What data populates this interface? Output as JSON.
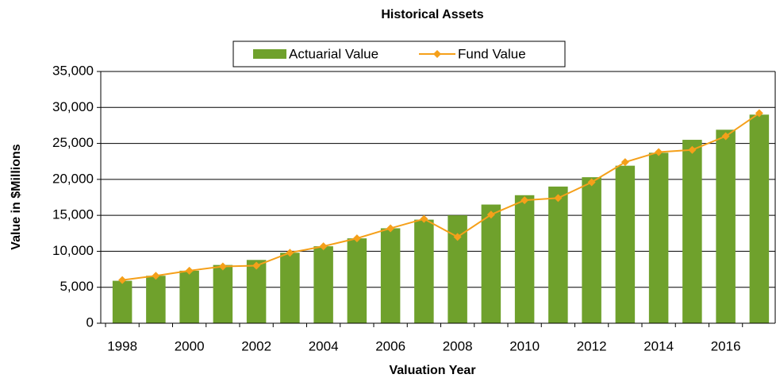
{
  "chart_data": {
    "type": "bar_line",
    "title": "Historical Assets",
    "x_label": "Valuation Year",
    "y_label": "Value in $Millions",
    "categories": [
      "1998",
      null,
      "2000",
      null,
      "2002",
      null,
      "2004",
      null,
      "2006",
      null,
      "2008",
      null,
      "2010",
      null,
      "2012",
      null,
      "2014",
      null,
      "2016",
      null
    ],
    "series": [
      {
        "name": "Actuarial Value",
        "kind": "bar",
        "color": "#6fa12c",
        "values": [
          5900,
          6600,
          7300,
          8100,
          8800,
          9800,
          10700,
          11800,
          13200,
          14400,
          15000,
          16500,
          17800,
          19000,
          20300,
          21900,
          23700,
          25500,
          26900,
          29000
        ]
      },
      {
        "name": "Fund Value",
        "kind": "line",
        "color": "#f5a01a",
        "values": [
          6000,
          6600,
          7300,
          7900,
          8000,
          9800,
          10700,
          11800,
          13200,
          14500,
          12000,
          15100,
          17100,
          17400,
          19600,
          22400,
          23800,
          24100,
          26000,
          29200
        ]
      }
    ],
    "ylim": [
      0,
      35000
    ],
    "yticks": [
      0,
      {
        "value": 5000,
        "label": "5,000"
      },
      {
        "value": 10000,
        "label": "10,000"
      },
      {
        "value": 15000,
        "label": "15,000"
      },
      {
        "value": 20000,
        "label": "20,000"
      },
      {
        "value": 25000,
        "label": "25,000"
      },
      {
        "value": 30000,
        "label": "30,000"
      },
      {
        "value": 35000,
        "label": "35,000"
      }
    ],
    "grid": true,
    "legend": "top"
  }
}
